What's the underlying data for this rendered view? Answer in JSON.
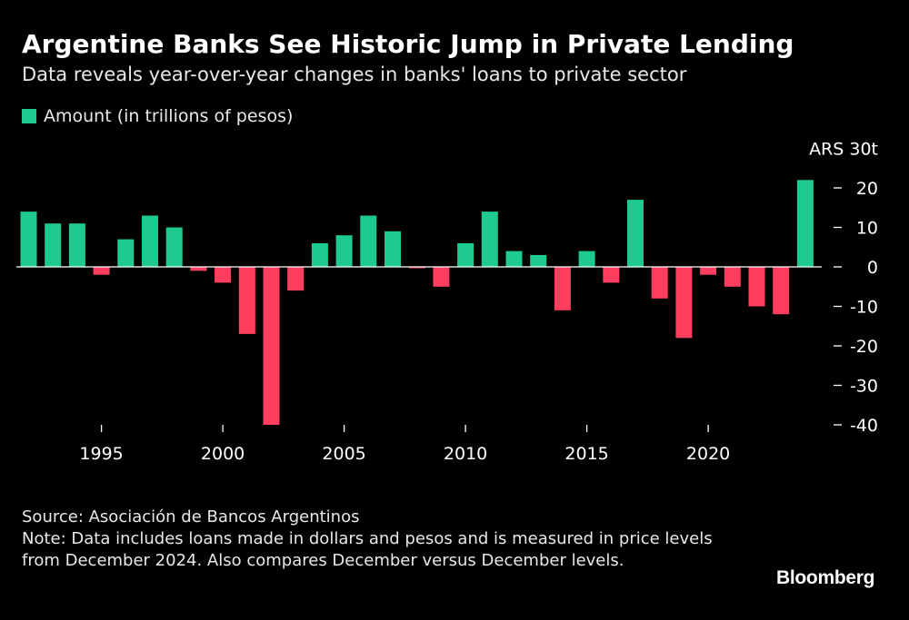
{
  "header": {
    "title": "Argentine Banks See Historic Jump in Private Lending",
    "subtitle": "Data reveals year-over-year changes in banks' loans to private sector"
  },
  "legend": {
    "label": "Amount (in trillions of pesos)"
  },
  "colors": {
    "positive": "#1ec992",
    "negative": "#ff3e60",
    "zero_line": "#ffffff",
    "tick": "#ffffff"
  },
  "chart_data": {
    "type": "bar",
    "title": "Argentine Banks See Historic Jump in Private Lending",
    "xlabel": "",
    "ylabel": "Amount (in trillions of pesos)",
    "y_unit_label": "ARS 30t",
    "ylim": [
      -40,
      30
    ],
    "yticks": [
      20,
      10,
      0,
      -10,
      -20,
      -30,
      -40
    ],
    "ytick_labels": [
      "20",
      "10",
      "0",
      "-10",
      "-20",
      "-30",
      "-40"
    ],
    "xticks": [
      1995,
      2000,
      2005,
      2010,
      2015,
      2020
    ],
    "xtick_labels": [
      "1995",
      "2000",
      "2005",
      "2010",
      "2015",
      "2020"
    ],
    "series": [
      {
        "name": "Amount (in trillions of pesos)",
        "x": [
          1992,
          1993,
          1994,
          1995,
          1996,
          1997,
          1998,
          1999,
          2000,
          2001,
          2002,
          2003,
          2004,
          2005,
          2006,
          2007,
          2008,
          2009,
          2010,
          2011,
          2012,
          2013,
          2014,
          2015,
          2016,
          2017,
          2018,
          2019,
          2020,
          2021,
          2022,
          2023,
          2024
        ],
        "values": [
          14,
          11,
          11,
          -2,
          7,
          13,
          10,
          -1,
          -4,
          -17,
          -40,
          -6,
          6,
          8,
          13,
          9,
          -0.3,
          -5,
          6,
          14,
          4,
          3,
          -11,
          4,
          -4,
          17,
          -8,
          -18,
          -2,
          -5,
          -10,
          -12,
          22
        ]
      }
    ]
  },
  "footer": {
    "source": "Source: Asociación de Bancos Argentinos",
    "note": "Note: Data includes loans made in dollars and pesos and is measured in price levels from December 2024. Also compares December versus December levels."
  },
  "brand": "Bloomberg"
}
